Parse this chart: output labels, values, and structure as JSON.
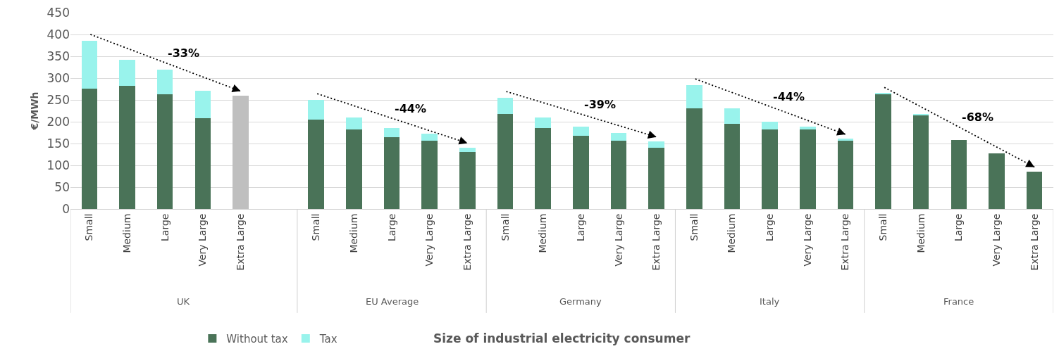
{
  "chart_data": {
    "type": "bar",
    "stacked": true,
    "ylabel": "€/MWh",
    "categories": [
      "Small",
      "Medium",
      "Large",
      "Very Large",
      "Extra Large",
      null,
      "Small",
      "Medium",
      "Large",
      "Very Large",
      "Extra Large",
      "Small",
      "Medium",
      "Large",
      "Very Large",
      "Extra Large",
      "Small",
      "Medium",
      "Large",
      "Very Large",
      "Extra Large",
      "Small",
      "Medium",
      "Large",
      "Very Large",
      "Extra Large"
    ],
    "series": [
      {
        "name": "Without tax",
        "color": "#4a7358",
        "colors": [
          "#4a7358",
          "#4a7358",
          "#4a7358",
          "#4a7358",
          "#bfbfbf",
          null,
          "#4a7358",
          "#4a7358",
          "#4a7358",
          "#4a7358",
          "#4a7358",
          "#4a7358",
          "#4a7358",
          "#4a7358",
          "#4a7358",
          "#4a7358",
          "#4a7358",
          "#4a7358",
          "#4a7358",
          "#4a7358",
          "#4a7358",
          "#4a7358",
          "#4a7358",
          "#4a7358",
          "#4a7358",
          "#4a7358"
        ],
        "values": [
          276,
          283,
          263,
          208,
          260,
          null,
          205,
          183,
          165,
          157,
          130,
          218,
          185,
          168,
          156,
          140,
          230,
          195,
          183,
          182,
          158,
          263,
          216,
          158,
          127,
          86
        ]
      },
      {
        "name": "Tax",
        "color": "#99f3ec",
        "values": [
          110,
          59,
          56,
          63,
          null,
          null,
          45,
          26,
          21,
          15,
          11,
          37,
          24,
          21,
          18,
          15,
          54,
          36,
          17,
          6,
          3,
          2,
          2,
          0,
          0,
          0
        ]
      }
    ],
    "annotations": [
      "UK",
      "EU Average",
      "Germany",
      "Italy",
      "France",
      "-33%",
      "-44%",
      "-39%",
      "-44%",
      "-68%",
      "Size of industrial electricity consumer"
    ],
    "ylim": [
      0,
      450
    ],
    "yticks": [
      0,
      50,
      100,
      150,
      200,
      250,
      300,
      350,
      400,
      450
    ],
    "grid": "y",
    "legend": "bottom"
  }
}
